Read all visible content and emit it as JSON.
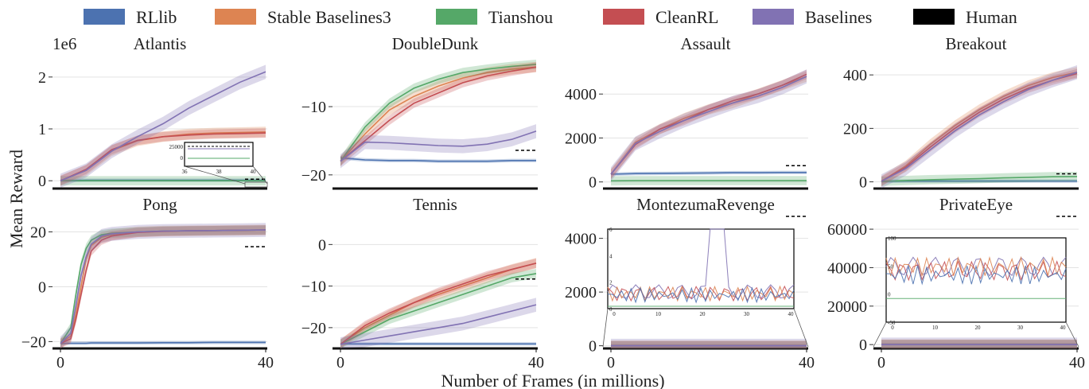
{
  "legend": [
    {
      "name": "RLlib",
      "color": "#4c72b0"
    },
    {
      "name": "Stable Baselines3",
      "color": "#dd8452"
    },
    {
      "name": "Tianshou",
      "color": "#55a868"
    },
    {
      "name": "CleanRL",
      "color": "#c44e52"
    },
    {
      "name": "Baselines",
      "color": "#8172b3"
    },
    {
      "name": "Human",
      "color": "#000000"
    }
  ],
  "figure": {
    "xlabel": "Number of Frames (in millions)",
    "ylabel": "Mean Reward"
  },
  "chart_data": [
    {
      "type": "line",
      "title": "Atlantis",
      "scale_note": "1e6",
      "xlim": [
        0,
        40
      ],
      "ylim": [
        -0.15,
        2.35
      ],
      "yticks": [
        0,
        1,
        2
      ],
      "ytick_labels": [
        "0",
        "1",
        "2"
      ],
      "xticks": [],
      "xtick_labels": [],
      "human": 0.03,
      "x": [
        0,
        5,
        10,
        15,
        20,
        25,
        30,
        35,
        40
      ],
      "series": [
        {
          "name": "RLlib",
          "values": [
            0,
            0.01,
            0.01,
            0.01,
            0.01,
            0.01,
            0.01,
            0.01,
            0.01
          ]
        },
        {
          "name": "Stable Baselines3",
          "values": [
            0,
            0.2,
            0.58,
            0.77,
            0.85,
            0.9,
            0.92,
            0.93,
            0.94
          ]
        },
        {
          "name": "Tianshou",
          "values": [
            0,
            0,
            0,
            0,
            0,
            0,
            0,
            0,
            0
          ]
        },
        {
          "name": "CleanRL",
          "values": [
            0,
            0.22,
            0.6,
            0.78,
            0.85,
            0.88,
            0.9,
            0.91,
            0.92
          ]
        },
        {
          "name": "Baselines",
          "values": [
            0,
            0.2,
            0.57,
            0.85,
            1.1,
            1.4,
            1.65,
            1.9,
            2.1
          ]
        }
      ],
      "inset": {
        "xticks": [
          "36",
          "38",
          "40"
        ],
        "yticks": [
          "0",
          "25000"
        ],
        "human_label": "25000"
      }
    },
    {
      "type": "line",
      "title": "DoubleDunk",
      "xlim": [
        0,
        40
      ],
      "ylim": [
        -22,
        -3
      ],
      "yticks": [
        -10,
        -20
      ],
      "ytick_labels": [
        "−10",
        "−20"
      ],
      "xticks": [],
      "xtick_labels": [],
      "human": -16.4,
      "x": [
        0,
        5,
        10,
        15,
        20,
        25,
        30,
        35,
        40
      ],
      "series": [
        {
          "name": "RLlib",
          "values": [
            -17.5,
            -17.8,
            -17.9,
            -17.9,
            -18,
            -18,
            -18,
            -17.9,
            -17.9
          ]
        },
        {
          "name": "Stable Baselines3",
          "values": [
            -18,
            -14,
            -10.5,
            -8.5,
            -7,
            -5.8,
            -5,
            -4.5,
            -4.2
          ]
        },
        {
          "name": "Tianshou",
          "values": [
            -18,
            -13,
            -9.5,
            -7.3,
            -6,
            -5,
            -4.5,
            -4.1,
            -3.8
          ]
        },
        {
          "name": "CleanRL",
          "values": [
            -18,
            -15,
            -12,
            -9.5,
            -8,
            -6.5,
            -5.5,
            -4.8,
            -4.2
          ]
        },
        {
          "name": "Baselines",
          "values": [
            -18,
            -15.2,
            -15.3,
            -15.5,
            -15.7,
            -15.8,
            -15.5,
            -14.8,
            -13.6
          ]
        }
      ]
    },
    {
      "type": "line",
      "title": "Assault",
      "xlim": [
        0,
        40
      ],
      "ylim": [
        -300,
        5600
      ],
      "yticks": [
        0,
        2000,
        4000
      ],
      "ytick_labels": [
        "0",
        "2000",
        "4000"
      ],
      "xticks": [],
      "xtick_labels": [],
      "human": 742,
      "x": [
        0,
        5,
        10,
        15,
        20,
        25,
        30,
        35,
        40
      ],
      "series": [
        {
          "name": "RLlib",
          "values": [
            350,
            380,
            390,
            400,
            410,
            420,
            420,
            430,
            430
          ]
        },
        {
          "name": "Stable Baselines3",
          "values": [
            350,
            1800,
            2400,
            2900,
            3300,
            3600,
            4000,
            4400,
            4800
          ]
        },
        {
          "name": "Tianshou",
          "values": [
            50,
            60,
            60,
            60,
            60,
            60,
            60,
            60,
            60
          ]
        },
        {
          "name": "CleanRL",
          "values": [
            350,
            1700,
            2400,
            2800,
            3300,
            3700,
            4000,
            4400,
            4900
          ]
        },
        {
          "name": "Baselines",
          "values": [
            350,
            1750,
            2300,
            2800,
            3200,
            3600,
            3900,
            4300,
            4800
          ]
        }
      ]
    },
    {
      "type": "line",
      "title": "Breakout",
      "xlim": [
        0,
        40
      ],
      "ylim": [
        -25,
        460
      ],
      "yticks": [
        0,
        200,
        400
      ],
      "ytick_labels": [
        "0",
        "200",
        "400"
      ],
      "xticks": [],
      "xtick_labels": [],
      "human": 30,
      "x": [
        0,
        5,
        10,
        15,
        20,
        25,
        30,
        35,
        40
      ],
      "series": [
        {
          "name": "RLlib",
          "values": [
            2,
            3,
            3,
            3,
            3,
            3,
            3,
            3,
            3
          ]
        },
        {
          "name": "Stable Baselines3",
          "values": [
            2,
            60,
            140,
            210,
            270,
            320,
            360,
            390,
            410
          ]
        },
        {
          "name": "Tianshou",
          "values": [
            2,
            5,
            8,
            10,
            12,
            15,
            17,
            19,
            20
          ]
        },
        {
          "name": "CleanRL",
          "values": [
            2,
            55,
            130,
            200,
            260,
            310,
            350,
            380,
            405
          ]
        },
        {
          "name": "Baselines",
          "values": [
            2,
            50,
            120,
            190,
            250,
            300,
            345,
            380,
            410
          ]
        }
      ]
    },
    {
      "type": "line",
      "title": "Pong",
      "xlim": [
        0,
        40
      ],
      "ylim": [
        -22.5,
        24.5
      ],
      "yticks": [
        20,
        0,
        -20
      ],
      "ytick_labels": [
        "20",
        "0",
        "−20"
      ],
      "xticks": [
        0,
        40
      ],
      "xtick_labels": [
        "0",
        "40"
      ],
      "human": 14.6,
      "x": [
        0,
        2,
        3,
        4,
        5,
        6,
        8,
        10,
        15,
        20,
        25,
        30,
        35,
        40
      ],
      "series": [
        {
          "name": "RLlib",
          "values": [
            -20.7,
            -20.6,
            -20.6,
            -20.6,
            -20.6,
            -20.5,
            -20.5,
            -20.5,
            -20.5,
            -20.4,
            -20.4,
            -20.3,
            -20.3,
            -20.3
          ]
        },
        {
          "name": "Stable Baselines3",
          "values": [
            -20.7,
            -18,
            -10,
            0,
            10,
            15,
            18,
            19,
            20,
            20.3,
            20.4,
            20.5,
            20.6,
            20.7
          ]
        },
        {
          "name": "Tianshou",
          "values": [
            -20.7,
            -15,
            -3,
            8,
            14,
            17,
            19,
            19.5,
            20,
            20.3,
            20.4,
            20.5,
            20.6,
            20.7
          ]
        },
        {
          "name": "CleanRL",
          "values": [
            -20.7,
            -19,
            -12,
            -3,
            6,
            13,
            17,
            18.5,
            19.8,
            20.2,
            20.4,
            20.5,
            20.6,
            20.7
          ]
        },
        {
          "name": "Baselines",
          "values": [
            -20.7,
            -17,
            -7,
            4,
            11,
            15.5,
            18.5,
            19.3,
            20,
            20.3,
            20.4,
            20.5,
            20.6,
            20.7
          ]
        }
      ]
    },
    {
      "type": "line",
      "title": "Tennis",
      "xlim": [
        0,
        40
      ],
      "ylim": [
        -25,
        6
      ],
      "yticks": [
        0,
        -10,
        -20
      ],
      "ytick_labels": [
        "0",
        "−10",
        "−20"
      ],
      "xticks": [
        0,
        40
      ],
      "xtick_labels": [
        "0",
        "40"
      ],
      "human": -8.3,
      "x": [
        0,
        5,
        10,
        15,
        20,
        25,
        30,
        35,
        40
      ],
      "series": [
        {
          "name": "RLlib",
          "values": [
            -23.9,
            -23.9,
            -23.9,
            -23.9,
            -23.9,
            -23.9,
            -23.9,
            -23.9,
            -23.9
          ]
        },
        {
          "name": "Stable Baselines3",
          "values": [
            -24,
            -20,
            -17,
            -14,
            -12,
            -10,
            -8,
            -6,
            -4.5
          ]
        },
        {
          "name": "Tianshou",
          "values": [
            -24,
            -21,
            -18,
            -16,
            -14,
            -12,
            -10,
            -8,
            -7
          ]
        },
        {
          "name": "CleanRL",
          "values": [
            -24,
            -19.5,
            -16.5,
            -14,
            -11.5,
            -9.5,
            -7.5,
            -6,
            -4.5
          ]
        },
        {
          "name": "Baselines",
          "values": [
            -24,
            -23,
            -22,
            -21,
            -20,
            -19,
            -17.5,
            -16,
            -14.5
          ]
        }
      ]
    },
    {
      "type": "line",
      "title": "MontezumaRevenge",
      "xlim": [
        0,
        40
      ],
      "ylim": [
        -100,
        4700
      ],
      "yticks": [
        0,
        2000,
        4000
      ],
      "ytick_labels": [
        "0",
        "2000",
        "4000"
      ],
      "xticks": [
        0,
        40
      ],
      "xtick_labels": [
        "0",
        "40"
      ],
      "human": 4753,
      "x": [
        0,
        5,
        10,
        15,
        20,
        25,
        30,
        35,
        40
      ],
      "series": [
        {
          "name": "RLlib",
          "values": [
            0,
            0,
            0,
            0,
            0,
            0,
            0,
            0,
            0
          ]
        },
        {
          "name": "Stable Baselines3",
          "values": [
            0,
            0,
            0,
            0,
            0,
            0,
            0,
            0,
            0
          ]
        },
        {
          "name": "Tianshou",
          "values": [
            0,
            0,
            0,
            0,
            0,
            0,
            0,
            0,
            0
          ]
        },
        {
          "name": "CleanRL",
          "values": [
            0,
            0,
            0,
            0,
            0,
            0,
            0,
            0,
            0
          ]
        },
        {
          "name": "Baselines",
          "values": [
            0,
            0,
            0,
            0,
            0,
            0,
            0,
            0,
            0
          ]
        }
      ],
      "inset": {
        "xticks": [
          "0",
          "10",
          "20",
          "30",
          "40"
        ],
        "yticks": [
          "0",
          "2",
          "4",
          "6"
        ]
      }
    },
    {
      "type": "line",
      "title": "PrivateEye",
      "xlim": [
        0,
        40
      ],
      "ylim": [
        -2000,
        65000
      ],
      "yticks": [
        0,
        20000,
        40000,
        60000
      ],
      "ytick_labels": [
        "0",
        "20000",
        "40000",
        "60000"
      ],
      "xticks": [
        0,
        40
      ],
      "xtick_labels": [
        "0",
        "40"
      ],
      "human": 69571,
      "x": [
        0,
        5,
        10,
        15,
        20,
        25,
        30,
        35,
        40
      ],
      "series": [
        {
          "name": "RLlib",
          "values": [
            0,
            0,
            0,
            0,
            0,
            0,
            0,
            0,
            0
          ]
        },
        {
          "name": "Stable Baselines3",
          "values": [
            0,
            0,
            0,
            0,
            0,
            0,
            0,
            0,
            0
          ]
        },
        {
          "name": "Tianshou",
          "values": [
            0,
            0,
            0,
            0,
            0,
            0,
            0,
            0,
            0
          ]
        },
        {
          "name": "CleanRL",
          "values": [
            0,
            0,
            0,
            0,
            0,
            0,
            0,
            0,
            0
          ]
        },
        {
          "name": "Baselines",
          "values": [
            0,
            0,
            0,
            0,
            0,
            0,
            0,
            0,
            0
          ]
        }
      ],
      "inset": {
        "xticks": [
          "0",
          "10",
          "20",
          "30",
          "40"
        ],
        "yticks": [
          "-50",
          "0",
          "50",
          "100"
        ]
      }
    }
  ]
}
